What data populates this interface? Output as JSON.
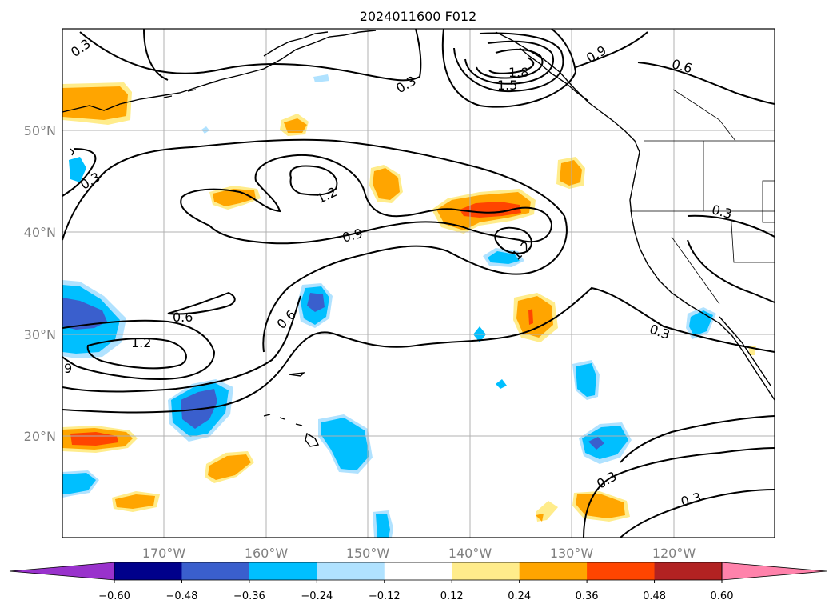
{
  "title": "2024011600 F012",
  "lon_labels": [
    "170°W",
    "160°W",
    "150°W",
    "140°W",
    "130°W",
    "120°W"
  ],
  "lat_labels": [
    "50°N",
    "40°N",
    "30°N",
    "20°N"
  ],
  "colorbar": {
    "ticks": [
      "−0.60",
      "−0.48",
      "−0.36",
      "−0.24",
      "−0.12",
      "0.12",
      "0.24",
      "0.36",
      "0.48",
      "0.60"
    ],
    "colors": [
      "#9932cc",
      "#00008b",
      "#3a5fcd",
      "#00bfff",
      "#b0e2ff",
      "#ffffff",
      "#ffec8b",
      "#ffa500",
      "#ff4500",
      "#b22222",
      "#ff82ab"
    ]
  },
  "contour_labels": [
    {
      "text": "0.3"
    },
    {
      "text": "1.8"
    },
    {
      "text": "1.5"
    },
    {
      "text": "0.3"
    },
    {
      "text": "0.9"
    },
    {
      "text": "0.6"
    },
    {
      "text": "0.3"
    },
    {
      "text": "1.2"
    },
    {
      "text": "0.9"
    },
    {
      "text": "1.2"
    },
    {
      "text": "0.3"
    },
    {
      "text": "0.6"
    },
    {
      "text": "0.6"
    },
    {
      "text": "1.2"
    },
    {
      "text": "9"
    },
    {
      "text": "0.3"
    },
    {
      "text": "0.3"
    },
    {
      "text": "0.3"
    }
  ],
  "fill_colors": {
    "orange": "#ffa500",
    "red": "#ff4500",
    "yellow": "#ffec8b",
    "cyan": "#00bfff",
    "lightblue": "#b0e2ff",
    "blue": "#3a5fcd"
  }
}
